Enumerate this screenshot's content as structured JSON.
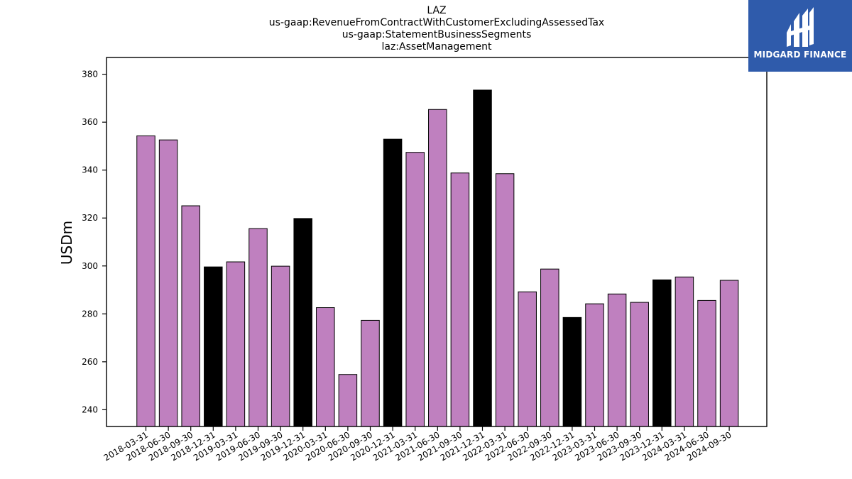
{
  "title_lines": [
    "LAZ",
    "us-gaap:RevenueFromContractWithCustomerExcludingAssessedTax",
    "us-gaap:StatementBusinessSegments",
    "laz:AssetManagement"
  ],
  "logo": {
    "text": "MIDGARD FINANCE",
    "color": "#2f5bab"
  },
  "colors": {
    "quarter": "#bf80bf",
    "year_end": "#000000"
  },
  "chart_data": {
    "type": "bar",
    "title": "LAZ\nus-gaap:RevenueFromContractWithCustomerExcludingAssessedTax\nus-gaap:StatementBusinessSegments\nlaz:AssetManagement",
    "xlabel": "",
    "ylabel": "USDm",
    "ylim": [
      233,
      387
    ],
    "yticks": [
      240,
      260,
      280,
      300,
      320,
      340,
      360,
      380
    ],
    "grid": false,
    "categories": [
      "2018-03-31",
      "2018-06-30",
      "2018-09-30",
      "2018-12-31",
      "2019-03-31",
      "2019-06-30",
      "2019-09-30",
      "2019-12-31",
      "2020-03-31",
      "2020-06-30",
      "2020-09-30",
      "2020-12-31",
      "2021-03-31",
      "2021-06-30",
      "2021-09-30",
      "2021-12-31",
      "2022-03-31",
      "2022-06-30",
      "2022-09-30",
      "2022-12-31",
      "2023-03-31",
      "2023-06-30",
      "2023-09-30",
      "2023-12-31",
      "2024-03-31",
      "2024-06-30",
      "2024-09-30"
    ],
    "values": [
      354.3,
      352.6,
      325.1,
      299.6,
      301.7,
      315.6,
      299.9,
      319.8,
      282.6,
      254.7,
      277.3,
      352.9,
      347.4,
      365.3,
      338.8,
      373.4,
      338.5,
      289.2,
      298.7,
      278.5,
      284.2,
      288.3,
      284.8,
      294.2,
      295.4,
      285.6,
      294.0
    ],
    "year_end": [
      false,
      false,
      false,
      true,
      false,
      false,
      false,
      true,
      false,
      false,
      false,
      true,
      false,
      false,
      false,
      true,
      false,
      false,
      false,
      true,
      false,
      false,
      false,
      true,
      false,
      false,
      false
    ]
  }
}
